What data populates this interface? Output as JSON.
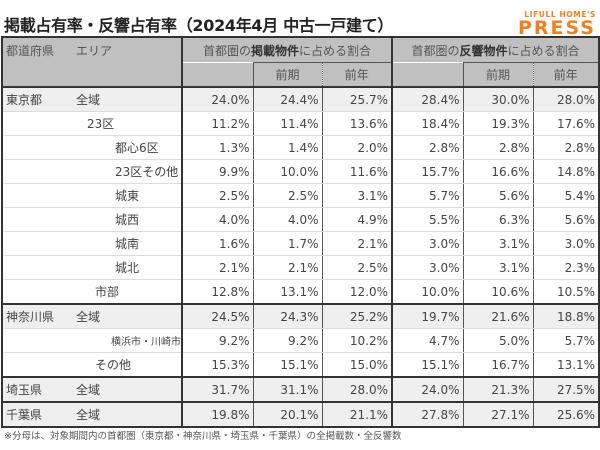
{
  "title": "掲載占有率・反響占有率（2024年4月 中古一戸建て）",
  "logo": {
    "top": "LIFULL HOME'S",
    "bottom": "PRESS",
    "color": "#f08020"
  },
  "table": {
    "header": {
      "col_pref": "都道府県",
      "col_area": "エリア",
      "group1": {
        "prefix": "首都圏の",
        "bold": "掲載物件",
        "suffix": "に占める割合"
      },
      "group2": {
        "prefix": "首都圏の",
        "bold": "反響物件",
        "suffix": "に占める割合"
      },
      "sub_prev_period": "前期",
      "sub_prev_year": "前年"
    },
    "rows": [
      {
        "pref": "東京都",
        "area": "全域",
        "values": [
          "24.0%",
          "24.4%",
          "25.7%",
          "28.4%",
          "30.0%",
          "28.0%"
        ]
      },
      {
        "pref": "",
        "area": "23区",
        "values": [
          "11.2%",
          "11.4%",
          "13.6%",
          "18.4%",
          "19.3%",
          "17.6%"
        ]
      },
      {
        "pref": "",
        "area": "都心6区",
        "values": [
          "1.3%",
          "1.4%",
          "2.0%",
          "2.8%",
          "2.8%",
          "2.8%"
        ]
      },
      {
        "pref": "",
        "area": "23区その他",
        "values": [
          "9.9%",
          "10.0%",
          "11.6%",
          "15.7%",
          "16.6%",
          "14.8%"
        ]
      },
      {
        "pref": "",
        "area": "城東",
        "values": [
          "2.5%",
          "2.5%",
          "3.1%",
          "5.7%",
          "5.6%",
          "5.4%"
        ]
      },
      {
        "pref": "",
        "area": "城西",
        "values": [
          "4.0%",
          "4.0%",
          "4.9%",
          "5.5%",
          "6.3%",
          "5.6%"
        ]
      },
      {
        "pref": "",
        "area": "城南",
        "values": [
          "1.6%",
          "1.7%",
          "2.1%",
          "3.0%",
          "3.1%",
          "3.0%"
        ]
      },
      {
        "pref": "",
        "area": "城北",
        "values": [
          "2.1%",
          "2.1%",
          "2.5%",
          "3.0%",
          "3.1%",
          "2.3%"
        ]
      },
      {
        "pref": "",
        "area": "市部",
        "values": [
          "12.8%",
          "13.1%",
          "12.0%",
          "10.0%",
          "10.6%",
          "10.5%"
        ]
      },
      {
        "pref": "神奈川県",
        "area": "全域",
        "values": [
          "24.5%",
          "24.3%",
          "25.2%",
          "19.7%",
          "21.6%",
          "18.8%"
        ]
      },
      {
        "pref": "",
        "area": "横浜市・川崎市",
        "values": [
          "9.2%",
          "9.2%",
          "10.2%",
          "4.7%",
          "5.0%",
          "5.7%"
        ]
      },
      {
        "pref": "",
        "area": "その他",
        "values": [
          "15.3%",
          "15.1%",
          "15.0%",
          "15.1%",
          "16.7%",
          "13.1%"
        ]
      },
      {
        "pref": "埼玉県",
        "area": "全域",
        "values": [
          "31.7%",
          "31.1%",
          "28.0%",
          "24.0%",
          "21.3%",
          "27.5%"
        ]
      },
      {
        "pref": "千葉県",
        "area": "全域",
        "values": [
          "19.8%",
          "20.1%",
          "21.1%",
          "27.8%",
          "27.1%",
          "25.6%"
        ]
      }
    ]
  },
  "footnote": "※分母は、対象期間内の首都圏（東京都・神奈川県・埼玉県・千葉県）の全掲載数・全反響数",
  "colors": {
    "header_bg": "#c0c0c0",
    "pref_row_bg": "#efefef",
    "border": "#333333"
  }
}
